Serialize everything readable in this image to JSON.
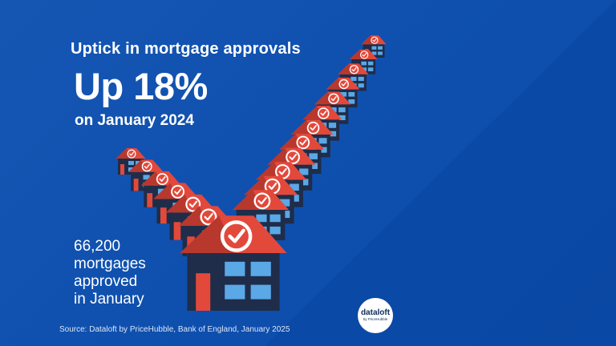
{
  "headline": "Uptick in mortgage approvals",
  "stat": {
    "value": "Up 18%",
    "period": "on January 2024"
  },
  "approvals": {
    "text": "66,200\nmortgages\napproved\nin January"
  },
  "source": "Source: Dataloft by PriceHubble, Bank of England, January 2025",
  "logo": {
    "name": "dataloft",
    "tagline": "by PriceHubble"
  },
  "colors": {
    "background": "#1656b3",
    "roof": "#e2493b",
    "house_body": "#1f2d4a",
    "window": "#5aa8e6",
    "check": "#ffffff"
  },
  "icons": [
    "house-icon",
    "check-badge-icon"
  ]
}
